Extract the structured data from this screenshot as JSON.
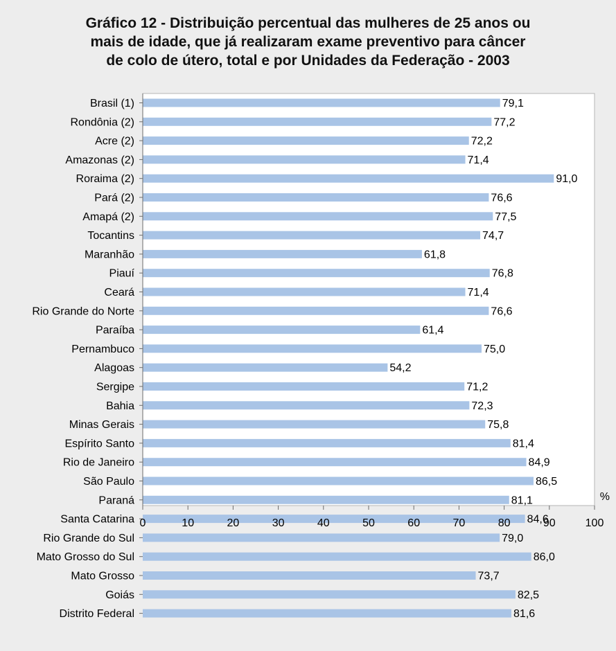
{
  "chart_data": {
    "type": "bar",
    "orientation": "horizontal",
    "title_lines": [
      "Gráfico 12 - Distribuição percentual das mulheres de 25 anos ou",
      "mais de idade, que já realizaram exame preventivo para câncer",
      "de colo de útero, total e por Unidades da Federação - 2003"
    ],
    "unit_label": "%",
    "categories": [
      "Brasil (1)",
      "Rondônia (2)",
      "Acre (2)",
      "Amazonas (2)",
      "Roraima (2)",
      "Pará (2)",
      "Amapá (2)",
      "Tocantins",
      "Maranhão",
      "Piauí",
      "Ceará",
      "Rio Grande do Norte",
      "Paraíba",
      "Pernambuco",
      "Alagoas",
      "Sergipe",
      "Bahia",
      "Minas Gerais",
      "Espírito Santo",
      "Rio de Janeiro",
      "São Paulo",
      "Paraná",
      "Santa Catarina",
      "Rio Grande do Sul",
      "Mato Grosso do Sul",
      "Mato Grosso",
      "Goiás",
      "Distrito Federal"
    ],
    "values": [
      79.1,
      77.2,
      72.2,
      71.4,
      91.0,
      76.6,
      77.5,
      74.7,
      61.8,
      76.8,
      71.4,
      76.6,
      61.4,
      75.0,
      54.2,
      71.2,
      72.3,
      75.8,
      81.4,
      84.9,
      86.5,
      81.1,
      84.6,
      79.0,
      86.0,
      73.7,
      82.5,
      81.6
    ],
    "value_labels": [
      "79,1",
      "77,2",
      "72,2",
      "71,4",
      "91,0",
      "76,6",
      "77,5",
      "74,7",
      "61,8",
      "76,8",
      "71,4",
      "76,6",
      "61,4",
      "75,0",
      "54,2",
      "71,2",
      "72,3",
      "75,8",
      "81,4",
      "84,9",
      "86,5",
      "81,1",
      "84,6",
      "79,0",
      "86,0",
      "73,7",
      "82,5",
      "81,6"
    ],
    "xlim": [
      0,
      100
    ],
    "xticks": [
      0,
      10,
      20,
      30,
      40,
      50,
      60,
      70,
      80,
      90,
      100
    ],
    "bar_color": "#a9c4e6",
    "grid": false
  }
}
